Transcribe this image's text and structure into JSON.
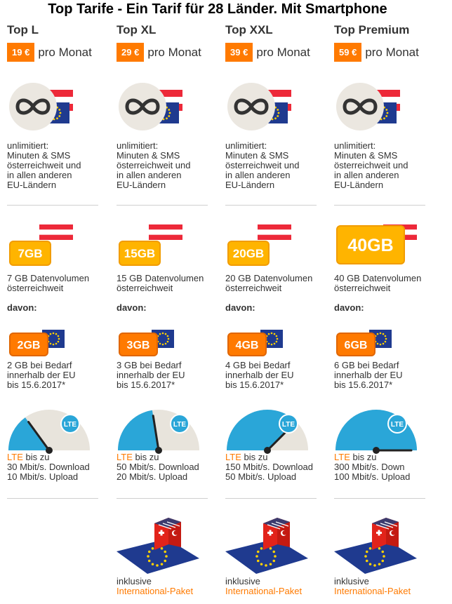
{
  "title": "Top Tarife - Ein Tarif für 28 Länder. Mit Smartphone",
  "per_month": "pro Monat",
  "davon": "davon:",
  "unlimited_lines": [
    "unlimitiert:",
    "Minuten & SMS",
    "österreichweit und",
    "in allen anderen",
    "EU-Ländern"
  ],
  "lte_word": "LTE",
  "lte_suffix": " bis zu",
  "intl_lines": [
    "inklusive",
    "International-Paket"
  ],
  "colors": {
    "accent": "#ff7a00",
    "data_badge": "#ffb400",
    "eu_blue": "#1f3a8f",
    "gauge_fill": "#2aa6d8",
    "gauge_bg": "#e8e4dc"
  },
  "icons": [
    "infinity-icon",
    "austria-flag-icon",
    "eu-flag-icon",
    "lte-gauge-icon",
    "international-map-icon"
  ],
  "plans": [
    {
      "name": "Top L",
      "price": "19 €",
      "data_badge": "7GB",
      "data_lines": [
        "7 GB Datenvolumen",
        "österreichweit"
      ],
      "eu_badge": "2GB",
      "eu_lines": [
        "2 GB bei Bedarf",
        "innerhalb der EU",
        "bis 15.6.2017*"
      ],
      "lte_lines": [
        "30 Mbit/s. Download",
        "10 Mbit/s. Upload"
      ],
      "gauge_level": 0.3
    },
    {
      "name": "Top XL",
      "price": "29 €",
      "data_badge": "15GB",
      "data_lines": [
        "15 GB Datenvolumen",
        "österreichweit"
      ],
      "eu_badge": "3GB",
      "eu_lines": [
        "3 GB bei Bedarf",
        "innerhalb der EU",
        "bis 15.6.2017*"
      ],
      "lte_lines": [
        "50 Mbit/s. Download",
        "20 Mbit/s. Upload"
      ],
      "gauge_level": 0.45
    },
    {
      "name": "Top XXL",
      "price": "39 €",
      "data_badge": "20GB",
      "data_lines": [
        "20 GB Datenvolumen",
        "österreichweit"
      ],
      "eu_badge": "4GB",
      "eu_lines": [
        "4 GB bei Bedarf",
        "innerhalb der EU",
        "bis 15.6.2017*"
      ],
      "lte_lines": [
        "150 Mbit/s. Download",
        "50 Mbit/s. Upload"
      ],
      "gauge_level": 0.75
    },
    {
      "name": "Top Premium",
      "price": "59 €",
      "data_badge": "40GB",
      "data_lines": [
        "40 GB Datenvolumen",
        "österreichweit"
      ],
      "eu_badge": "6GB",
      "eu_lines": [
        "6 GB bei Bedarf",
        "innerhalb der EU",
        "bis 15.6.2017*"
      ],
      "lte_lines": [
        "300 Mbit/s. Down",
        "100 Mbit/s. Upload"
      ],
      "gauge_level": 1.0
    }
  ]
}
